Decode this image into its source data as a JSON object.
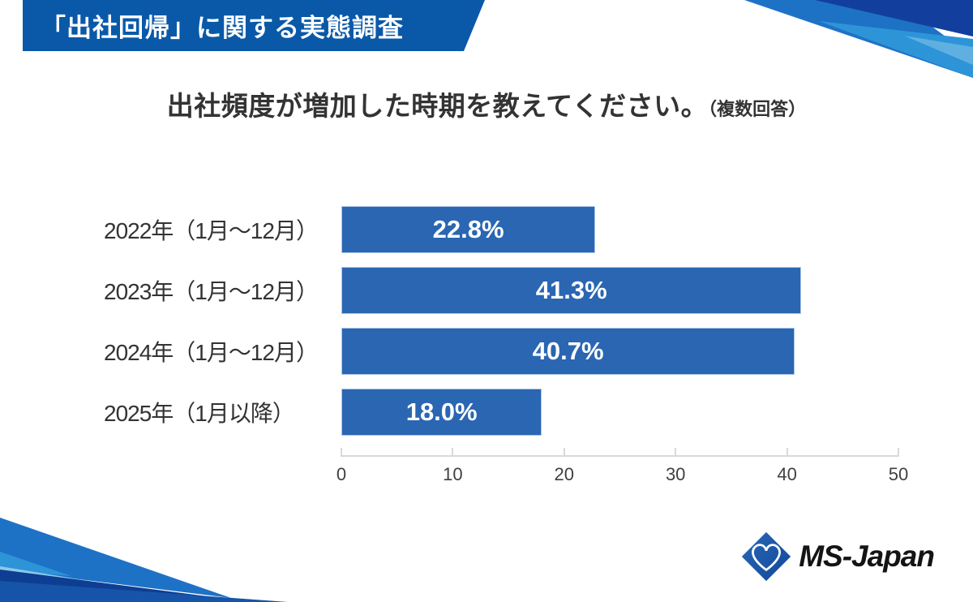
{
  "header": {
    "banner_title": "「出社回帰」に関する実態調査"
  },
  "chart_data": {
    "type": "bar",
    "orientation": "horizontal",
    "title": "出社頻度が増加した時期を教えてください。",
    "title_note": "（複数回答）",
    "categories": [
      "2022年（1月～12月）",
      "2023年（1月～12月）",
      "2024年（1月～12月）",
      "2025年（1月以降）"
    ],
    "values": [
      22.8,
      41.3,
      40.7,
      18.0
    ],
    "value_labels": [
      "22.8%",
      "41.3%",
      "40.7%",
      "18.0%"
    ],
    "x_ticks": [
      "0",
      "10",
      "20",
      "30",
      "40",
      "50"
    ],
    "xlim": [
      0,
      50
    ],
    "grid": "off",
    "legend": "none",
    "bar_color": "#2a66b2"
  },
  "footer": {
    "logo_text": "MS-Japan"
  },
  "colors": {
    "banner_blue": "#0a59a8",
    "bar_blue": "#2a66b2",
    "deco_medium": "#1e72c6",
    "deco_light": "#2e94d8",
    "deco_pale": "#8fc8ea",
    "deco_navy": "#0d3e92",
    "deco_deep": "#1554a9",
    "axis_gray": "#d9d9d9",
    "text_dark": "#333333"
  }
}
